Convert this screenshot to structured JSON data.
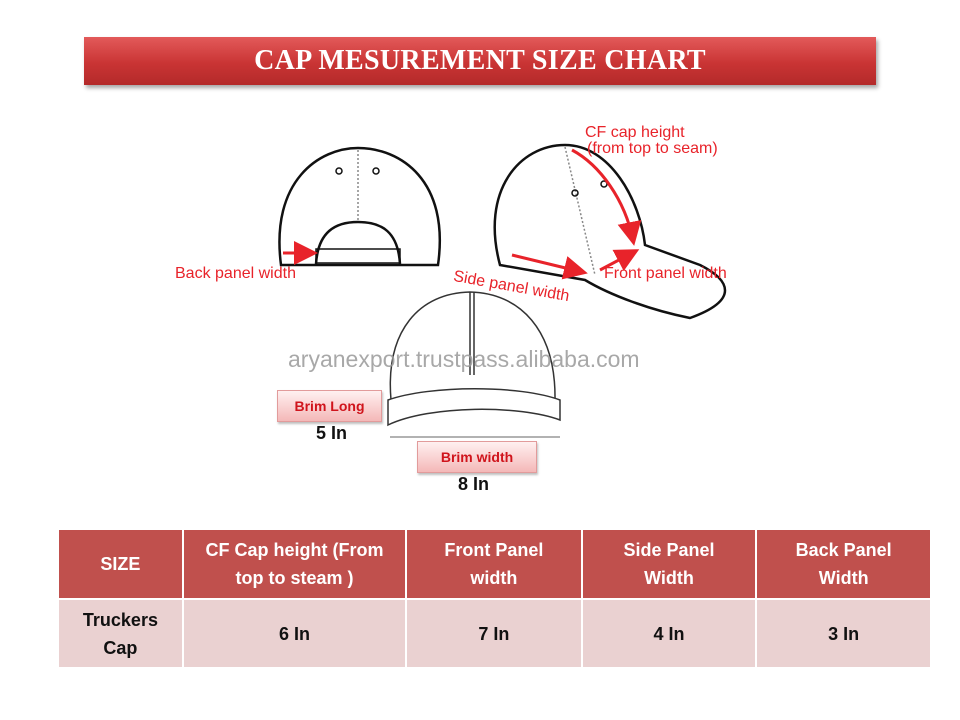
{
  "title": "CAP MESUREMENT SIZE CHART",
  "diagram": {
    "labels": {
      "cf_cap_height": "CF cap height",
      "cf_cap_height_note": "(from top to seam)",
      "back_panel_width": "Back panel width",
      "side_panel_width": "Side panel width",
      "front_panel_width": "Front panel width"
    },
    "watermark": "aryanexport.trustpass.alibaba.com",
    "brim_long": {
      "label": "Brim Long",
      "value": "5 In"
    },
    "brim_width": {
      "label": "Brim width",
      "value": "8 In"
    },
    "accent_color": "#e8232a"
  },
  "table": {
    "headers": [
      "SIZE",
      "CF Cap height (From top to steam )",
      "Front Panel width",
      "Side Panel Width",
      "Back Panel Width"
    ],
    "rows": [
      [
        "Truckers Cap",
        "6 In",
        "7 In",
        "4 In",
        "3 In"
      ]
    ],
    "header_color": "#c0504d",
    "row_color": "#ead1d1"
  }
}
